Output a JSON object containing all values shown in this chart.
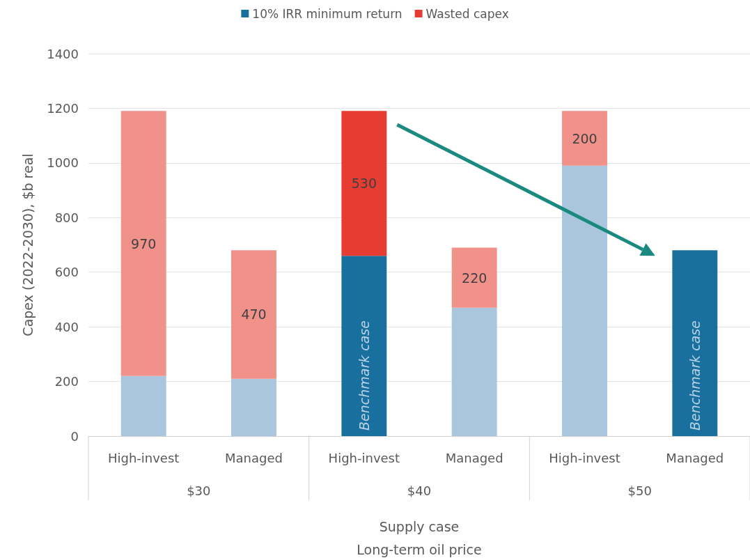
{
  "chart_data": {
    "type": "bar",
    "stacked": true,
    "categories": [
      "High-invest",
      "Managed",
      "High-invest",
      "Managed",
      "High-invest",
      "Managed"
    ],
    "series": [
      {
        "name": "10% IRR minimum return",
        "color": "#19709e",
        "colors": [
          "#a9c6de",
          "#a9c6de",
          "#19709e",
          "#a9c6de",
          "#a9c6de",
          "#19709e"
        ],
        "values": [
          220,
          210,
          660,
          470,
          990,
          680
        ],
        "value_labels": [
          null,
          null,
          "Benchmark case",
          null,
          null,
          "Benchmark case"
        ]
      },
      {
        "name": "Wasted capex",
        "color": "#e63c31",
        "colors": [
          "#f0918a",
          "#f0918a",
          "#e63c31",
          "#f0918a",
          "#f0918a",
          null
        ],
        "values": [
          970,
          470,
          530,
          220,
          200,
          null
        ],
        "value_labels": [
          "970",
          "470",
          "530",
          "220",
          "200",
          null
        ]
      }
    ],
    "ylabel": "Capex (2022-2030), $b real",
    "xlabel": "Supply case\nLong-term oil price",
    "annotations": [
      "$30",
      "$40",
      "$50"
    ],
    "ylim": [
      0,
      1400
    ],
    "yticks": [
      0,
      200,
      400,
      600,
      800,
      1000,
      1200,
      1400
    ],
    "grid": "y",
    "legend": "top"
  }
}
